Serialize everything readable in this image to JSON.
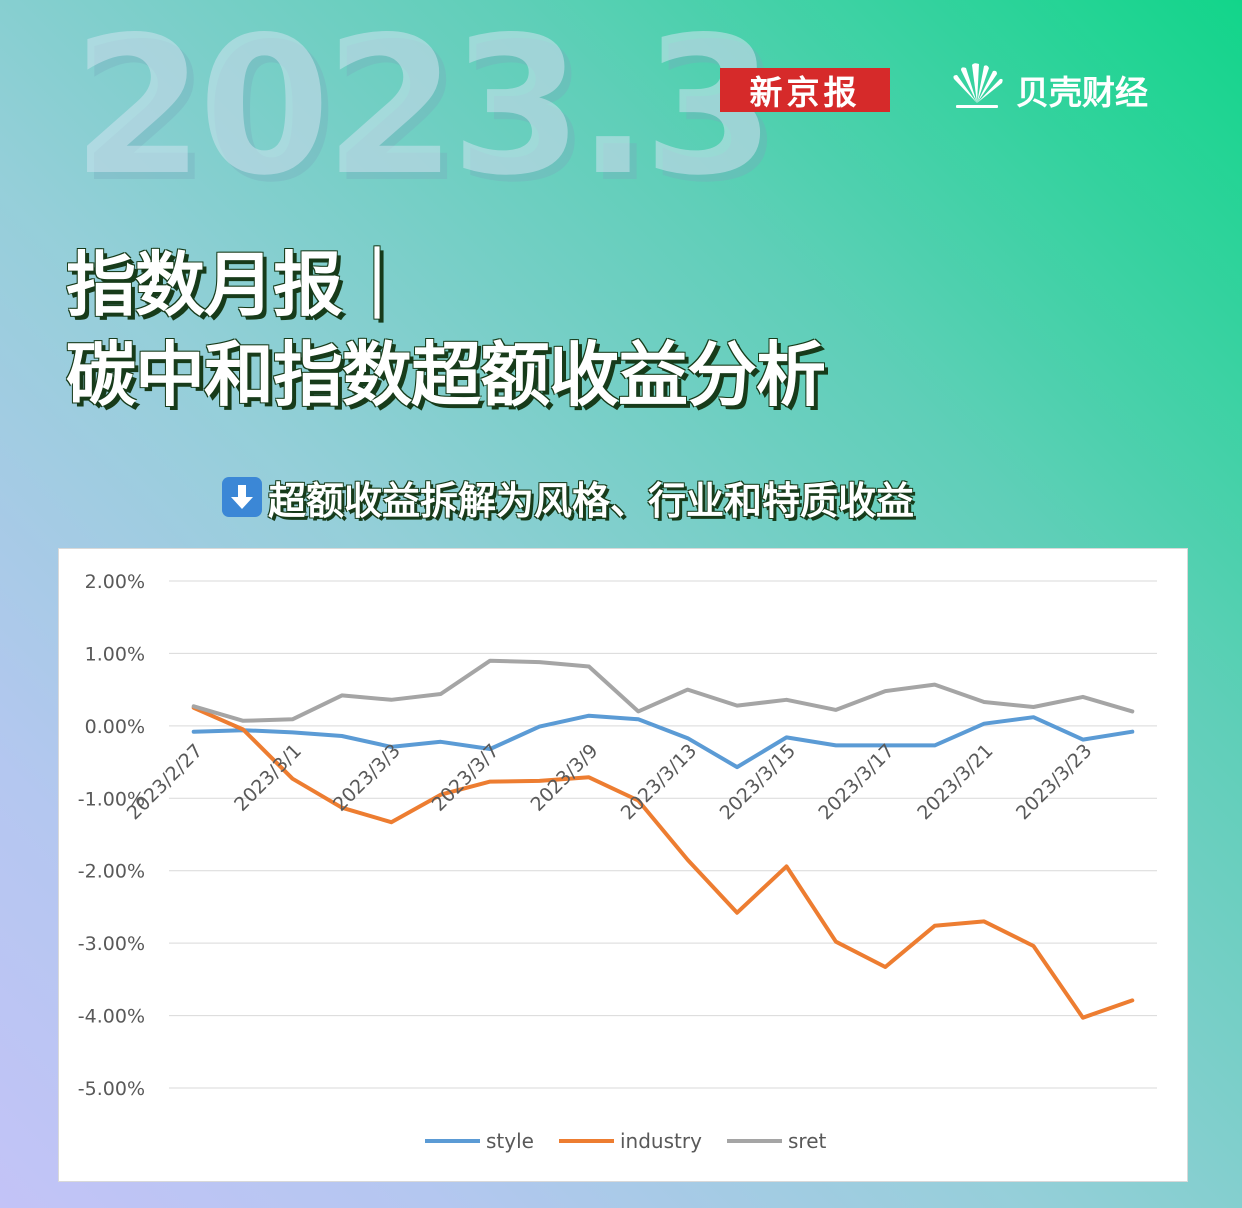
{
  "header": {
    "year": "2023.3",
    "logo_xinjingbao": "新京报",
    "logo_beike": "贝壳财经",
    "title_line1": "指数月报｜",
    "title_line2": "碳中和指数超额收益分析",
    "subtitle": "超额收益拆解为风格、行业和特质收益",
    "subtitle_icon": "down-arrow-icon"
  },
  "colors": {
    "style": "#5b9bd5",
    "industry": "#ed7d31",
    "sret": "#a5a5a5",
    "logo_red": "#d62a2a",
    "arrow_blue": "#3b87d6"
  },
  "chart_data": {
    "type": "line",
    "x": [
      "2023/2/27",
      "2023/2/28",
      "2023/3/1",
      "2023/3/2",
      "2023/3/3",
      "2023/3/6",
      "2023/3/7",
      "2023/3/8",
      "2023/3/9",
      "2023/3/10",
      "2023/3/13",
      "2023/3/14",
      "2023/3/15",
      "2023/3/16",
      "2023/3/17",
      "2023/3/20",
      "2023/3/21",
      "2023/3/22",
      "2023/3/23",
      "2023/3/24"
    ],
    "x_tick_labels": [
      "2023/2/27",
      "",
      "2023/3/1",
      "",
      "2023/3/3",
      "",
      "2023/3/7",
      "",
      "2023/3/9",
      "",
      "2023/3/13",
      "",
      "2023/3/15",
      "",
      "2023/3/17",
      "",
      "2023/3/21",
      "",
      "2023/3/23",
      ""
    ],
    "series": [
      {
        "name": "style",
        "values": [
          -0.08,
          -0.06,
          -0.09,
          -0.14,
          -0.29,
          -0.22,
          -0.32,
          -0.01,
          0.14,
          0.09,
          -0.17,
          -0.57,
          -0.16,
          -0.27,
          -0.27,
          -0.27,
          0.03,
          0.12,
          -0.19,
          -0.08
        ]
      },
      {
        "name": "industry",
        "values": [
          0.25,
          -0.05,
          -0.73,
          -1.13,
          -1.33,
          -0.95,
          -0.77,
          -0.76,
          -0.71,
          -1.03,
          -1.85,
          -2.58,
          -1.94,
          -2.98,
          -3.33,
          -2.76,
          -2.7,
          -3.04,
          -4.03,
          -3.79
        ]
      },
      {
        "name": "sret",
        "values": [
          0.27,
          0.07,
          0.09,
          0.42,
          0.36,
          0.44,
          0.9,
          0.88,
          0.82,
          0.2,
          0.5,
          0.28,
          0.36,
          0.22,
          0.48,
          0.57,
          0.33,
          0.26,
          0.4,
          0.2
        ]
      }
    ],
    "y_ticks": [
      "2.00%",
      "1.00%",
      "0.00%",
      "-1.00%",
      "-2.00%",
      "-3.00%",
      "-4.00%",
      "-5.00%"
    ],
    "ylim": [
      -5,
      2
    ],
    "grid": true,
    "legend_position": "bottom",
    "title": "",
    "xlabel": "",
    "ylabel": ""
  }
}
